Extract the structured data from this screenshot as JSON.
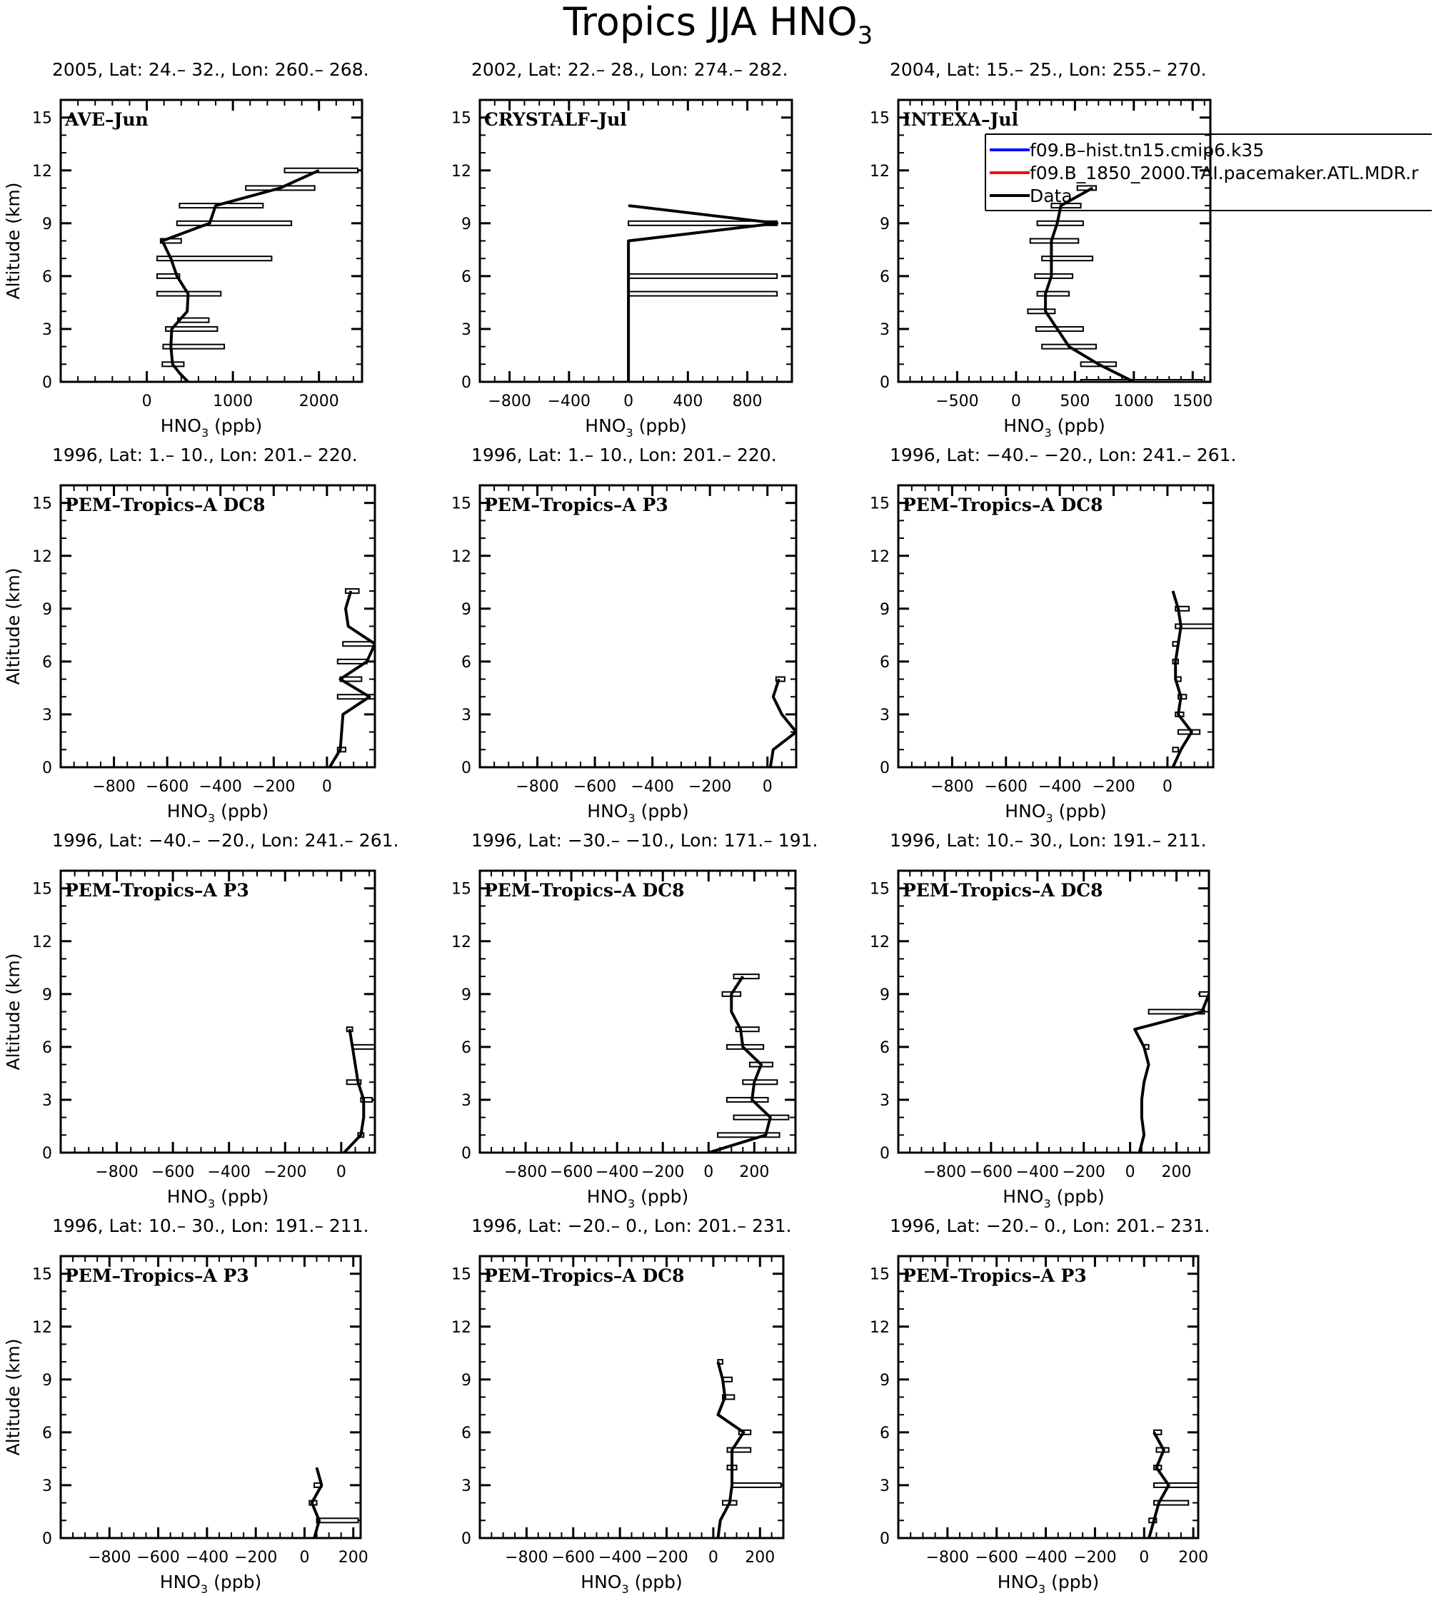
{
  "figure": {
    "title": "Tropics JJA HNO",
    "title_sub": "3"
  },
  "chart_data": [
    {
      "type": "line",
      "panel_title": "2005, Lat: 24.– 32., Lon: 260.– 268.",
      "label": "AVE–Jun",
      "xlabel": "HNO",
      "xlabel_sub": "3",
      "xlabel_unit": " (ppb)",
      "ylabel": "Altitude (km)",
      "xlim": [
        -1000,
        2500
      ],
      "ylim": [
        0,
        16
      ],
      "xticks": [
        0,
        1000,
        2000
      ],
      "xminor": 200,
      "yticks": [
        0,
        3,
        6,
        9,
        12,
        15
      ],
      "yminor": 1,
      "profile": [
        [
          480,
          0
        ],
        [
          380,
          0.5
        ],
        [
          300,
          1
        ],
        [
          280,
          2
        ],
        [
          290,
          3
        ],
        [
          380,
          3.5
        ],
        [
          470,
          4
        ],
        [
          480,
          5
        ],
        [
          350,
          6
        ],
        [
          280,
          7
        ],
        [
          180,
          8
        ],
        [
          730,
          9
        ],
        [
          800,
          10
        ],
        [
          1550,
          11
        ],
        [
          2000,
          12
        ]
      ],
      "bars": [
        [
          180,
          430,
          1
        ],
        [
          190,
          900,
          2
        ],
        [
          220,
          820,
          3
        ],
        [
          360,
          720,
          3.5
        ],
        [
          120,
          860,
          5
        ],
        [
          120,
          380,
          6
        ],
        [
          120,
          1450,
          7
        ],
        [
          160,
          400,
          8
        ],
        [
          350,
          1680,
          9
        ],
        [
          380,
          1350,
          10
        ],
        [
          1150,
          1950,
          11
        ],
        [
          1600,
          2450,
          12
        ]
      ]
    },
    {
      "type": "line",
      "panel_title": "2002, Lat: 22.– 28., Lon: 274.– 282.",
      "label": "CRYSTALF–Jul",
      "xlabel": "HNO",
      "xlabel_sub": "3",
      "xlabel_unit": " (ppb)",
      "ylabel": "",
      "xlim": [
        -1000,
        1100
      ],
      "ylim": [
        0,
        16
      ],
      "xticks": [
        -800,
        -400,
        0,
        400,
        800
      ],
      "xminor": 100,
      "yticks": [
        0,
        3,
        6,
        9,
        12,
        15
      ],
      "yminor": 1,
      "profile": [
        [
          0,
          0
        ],
        [
          0,
          8
        ],
        [
          1000,
          9
        ],
        [
          0,
          10
        ]
      ],
      "bars": [
        [
          0,
          1000,
          5
        ],
        [
          0,
          1000,
          6
        ],
        [
          0,
          1000,
          9
        ]
      ]
    },
    {
      "type": "line",
      "panel_title": "2004, Lat: 15.– 25., Lon: 255.– 270.",
      "label": "INTEXA–Jul",
      "xlabel": "HNO",
      "xlabel_sub": "3",
      "xlabel_unit": " (ppb)",
      "ylabel": "",
      "xlim": [
        -1000,
        1650
      ],
      "ylim": [
        0,
        16
      ],
      "xticks": [
        -500,
        0,
        500,
        1000,
        1500
      ],
      "xminor": 100,
      "yticks": [
        0,
        3,
        6,
        9,
        12,
        15
      ],
      "yminor": 1,
      "profile": [
        [
          1000,
          0
        ],
        [
          700,
          1
        ],
        [
          450,
          2
        ],
        [
          350,
          3
        ],
        [
          250,
          4
        ],
        [
          250,
          5
        ],
        [
          300,
          6
        ],
        [
          300,
          7
        ],
        [
          300,
          8
        ],
        [
          350,
          9
        ],
        [
          380,
          10
        ],
        [
          650,
          11
        ]
      ],
      "bars": [
        [
          550,
          1580,
          0
        ],
        [
          550,
          850,
          1
        ],
        [
          220,
          680,
          2
        ],
        [
          170,
          570,
          3
        ],
        [
          100,
          330,
          4
        ],
        [
          180,
          450,
          5
        ],
        [
          160,
          480,
          6
        ],
        [
          220,
          650,
          7
        ],
        [
          120,
          530,
          8
        ],
        [
          180,
          570,
          9
        ],
        [
          300,
          550,
          10
        ],
        [
          520,
          680,
          11
        ]
      ],
      "legend": {
        "entries": [
          {
            "name": "f09.B–hist.tn15.cmip6.k35",
            "color": "#0000ff"
          },
          {
            "name": "f09.B_1850_2000.TAI.pacemaker.ATL.MDR.r",
            "color": "#ff0000"
          },
          {
            "name": "Data",
            "color": "#000000"
          }
        ]
      }
    },
    {
      "type": "line",
      "panel_title": "1996, Lat: 1.– 10., Lon: 201.– 220.",
      "label": "PEM–Tropics–A DC8",
      "xlabel": "HNO",
      "xlabel_sub": "3",
      "xlabel_unit": " (ppb)",
      "ylabel": "Altitude (km)",
      "xlim": [
        -1000,
        180
      ],
      "ylim": [
        0,
        16
      ],
      "xticks": [
        -800,
        -600,
        -400,
        -200,
        0
      ],
      "xminor": 50,
      "yticks": [
        0,
        3,
        6,
        9,
        12,
        15
      ],
      "yminor": 1,
      "profile": [
        [
          10,
          0
        ],
        [
          50,
          1
        ],
        [
          60,
          3
        ],
        [
          160,
          4
        ],
        [
          50,
          5
        ],
        [
          150,
          6
        ],
        [
          180,
          7
        ],
        [
          80,
          8
        ],
        [
          70,
          9
        ],
        [
          90,
          10
        ]
      ],
      "bars": [
        [
          40,
          70,
          1
        ],
        [
          40,
          180,
          4
        ],
        [
          50,
          130,
          5
        ],
        [
          40,
          150,
          6
        ],
        [
          60,
          180,
          7
        ],
        [
          70,
          120,
          10
        ]
      ]
    },
    {
      "type": "line",
      "panel_title": "1996, Lat: 1.– 10., Lon: 201.– 220.",
      "label": "PEM–Tropics–A P3",
      "xlabel": "HNO",
      "xlabel_sub": "3",
      "xlabel_unit": " (ppb)",
      "ylabel": "",
      "xlim": [
        -1000,
        100
      ],
      "ylim": [
        0,
        16
      ],
      "xticks": [
        -800,
        -600,
        -400,
        -200,
        0
      ],
      "xminor": 50,
      "yticks": [
        0,
        3,
        6,
        9,
        12,
        15
      ],
      "yminor": 1,
      "profile": [
        [
          10,
          0
        ],
        [
          20,
          1
        ],
        [
          100,
          2
        ],
        [
          50,
          3
        ],
        [
          20,
          4
        ],
        [
          40,
          5
        ]
      ],
      "bars": [
        [
          30,
          60,
          5
        ]
      ]
    },
    {
      "type": "line",
      "panel_title": "1996, Lat: −40.– −20., Lon: 241.– 261.",
      "label": "PEM–Tropics–A DC8",
      "xlabel": "HNO",
      "xlabel_sub": "3",
      "xlabel_unit": " (ppb)",
      "ylabel": "",
      "xlim": [
        -1000,
        170
      ],
      "ylim": [
        0,
        16
      ],
      "xticks": [
        -800,
        -600,
        -400,
        -200,
        0
      ],
      "xminor": 50,
      "yticks": [
        0,
        3,
        6,
        9,
        12,
        15
      ],
      "yminor": 1,
      "profile": [
        [
          20,
          0
        ],
        [
          50,
          1
        ],
        [
          90,
          2
        ],
        [
          40,
          3
        ],
        [
          50,
          4
        ],
        [
          30,
          5
        ],
        [
          30,
          6
        ],
        [
          40,
          7
        ],
        [
          50,
          8
        ],
        [
          40,
          9
        ],
        [
          20,
          10
        ]
      ],
      "bars": [
        [
          20,
          40,
          1
        ],
        [
          40,
          120,
          2
        ],
        [
          30,
          60,
          3
        ],
        [
          40,
          70,
          4
        ],
        [
          30,
          50,
          5
        ],
        [
          20,
          40,
          6
        ],
        [
          20,
          40,
          7
        ],
        [
          30,
          170,
          8
        ],
        [
          30,
          80,
          9
        ]
      ]
    },
    {
      "type": "line",
      "panel_title": "1996, Lat: −40.– −20., Lon: 241.– 261.",
      "label": "PEM–Tropics–A P3",
      "xlabel": "HNO",
      "xlabel_sub": "3",
      "xlabel_unit": " (ppb)",
      "ylabel": "Altitude (km)",
      "xlim": [
        -1000,
        120
      ],
      "ylim": [
        0,
        16
      ],
      "xticks": [
        -800,
        -600,
        -400,
        -200,
        0
      ],
      "xminor": 50,
      "yticks": [
        0,
        3,
        6,
        9,
        12,
        15
      ],
      "yminor": 1,
      "profile": [
        [
          10,
          0
        ],
        [
          70,
          1
        ],
        [
          80,
          2
        ],
        [
          80,
          3
        ],
        [
          60,
          4
        ],
        [
          50,
          5
        ],
        [
          40,
          6
        ],
        [
          30,
          7
        ]
      ],
      "bars": [
        [
          60,
          80,
          1
        ],
        [
          70,
          110,
          3
        ],
        [
          20,
          70,
          4
        ],
        [
          40,
          120,
          6
        ],
        [
          20,
          40,
          7
        ]
      ]
    },
    {
      "type": "line",
      "panel_title": "1996, Lat: −30.– −10., Lon: 171.– 191.",
      "label": "PEM–Tropics–A DC8",
      "xlabel": "HNO",
      "xlabel_sub": "3",
      "xlabel_unit": " (ppb)",
      "ylabel": "",
      "xlim": [
        -1000,
        380
      ],
      "ylim": [
        0,
        16
      ],
      "xticks": [
        -800,
        -600,
        -400,
        -200,
        0,
        200
      ],
      "xminor": 50,
      "yticks": [
        0,
        3,
        6,
        9,
        12,
        15
      ],
      "yminor": 1,
      "profile": [
        [
          0,
          0
        ],
        [
          250,
          1
        ],
        [
          270,
          2
        ],
        [
          190,
          3
        ],
        [
          200,
          4
        ],
        [
          230,
          5
        ],
        [
          150,
          6
        ],
        [
          140,
          7
        ],
        [
          100,
          8
        ],
        [
          100,
          9
        ],
        [
          150,
          10
        ]
      ],
      "bars": [
        [
          40,
          310,
          1
        ],
        [
          110,
          350,
          2
        ],
        [
          80,
          260,
          3
        ],
        [
          150,
          300,
          4
        ],
        [
          180,
          280,
          5
        ],
        [
          80,
          240,
          6
        ],
        [
          120,
          220,
          7
        ],
        [
          60,
          140,
          9
        ],
        [
          110,
          220,
          10
        ]
      ]
    },
    {
      "type": "line",
      "panel_title": "1996, Lat: 10.– 30., Lon: 191.– 211.",
      "label": "PEM–Tropics–A DC8",
      "xlabel": "HNO",
      "xlabel_sub": "3",
      "xlabel_unit": " (ppb)",
      "ylabel": "",
      "xlim": [
        -1000,
        340
      ],
      "ylim": [
        0,
        16
      ],
      "xticks": [
        -800,
        -600,
        -400,
        -200,
        0,
        200
      ],
      "xminor": 50,
      "yticks": [
        0,
        3,
        6,
        9,
        12,
        15
      ],
      "yminor": 1,
      "profile": [
        [
          40,
          0
        ],
        [
          60,
          1
        ],
        [
          50,
          2
        ],
        [
          50,
          3
        ],
        [
          60,
          4
        ],
        [
          80,
          5
        ],
        [
          60,
          6
        ],
        [
          20,
          7
        ],
        [
          310,
          8
        ],
        [
          340,
          9
        ]
      ],
      "bars": [
        [
          80,
          320,
          8
        ],
        [
          300,
          340,
          9
        ],
        [
          60,
          80,
          6
        ]
      ]
    },
    {
      "type": "line",
      "panel_title": "1996, Lat: 10.– 30., Lon: 191.– 211.",
      "label": "PEM–Tropics–A P3",
      "xlabel": "HNO",
      "xlabel_sub": "3",
      "xlabel_unit": " (ppb)",
      "ylabel": "Altitude (km)",
      "xlim": [
        -1000,
        230
      ],
      "ylim": [
        0,
        16
      ],
      "xticks": [
        -800,
        -600,
        -400,
        -200,
        0,
        200
      ],
      "xminor": 50,
      "yticks": [
        0,
        3,
        6,
        9,
        12,
        15
      ],
      "yminor": 1,
      "profile": [
        [
          40,
          0
        ],
        [
          60,
          1
        ],
        [
          30,
          2
        ],
        [
          70,
          3
        ],
        [
          50,
          4
        ]
      ],
      "bars": [
        [
          50,
          220,
          1
        ],
        [
          20,
          50,
          2
        ],
        [
          40,
          70,
          3
        ]
      ]
    },
    {
      "type": "line",
      "panel_title": "1996, Lat: −20.– 0., Lon: 201.– 231.",
      "label": "PEM–Tropics–A DC8",
      "xlabel": "HNO",
      "xlabel_sub": "3",
      "xlabel_unit": " (ppb)",
      "ylabel": "",
      "xlim": [
        -1000,
        300
      ],
      "ylim": [
        0,
        16
      ],
      "xticks": [
        -800,
        -600,
        -400,
        -200,
        0,
        200
      ],
      "xminor": 50,
      "yticks": [
        0,
        3,
        6,
        9,
        12,
        15
      ],
      "yminor": 1,
      "profile": [
        [
          20,
          0
        ],
        [
          30,
          1
        ],
        [
          70,
          2
        ],
        [
          80,
          3
        ],
        [
          80,
          4
        ],
        [
          80,
          5
        ],
        [
          130,
          6
        ],
        [
          20,
          7
        ],
        [
          50,
          8
        ],
        [
          40,
          9
        ],
        [
          20,
          10
        ]
      ],
      "bars": [
        [
          40,
          100,
          2
        ],
        [
          80,
          290,
          3
        ],
        [
          60,
          100,
          4
        ],
        [
          60,
          160,
          5
        ],
        [
          110,
          160,
          6
        ],
        [
          40,
          90,
          8
        ],
        [
          40,
          80,
          9
        ],
        [
          20,
          40,
          10
        ]
      ]
    },
    {
      "type": "line",
      "panel_title": "1996, Lat: −20.– 0., Lon: 201.– 231.",
      "label": "PEM–Tropics–A P3",
      "xlabel": "HNO",
      "xlabel_sub": "3",
      "xlabel_unit": " (ppb)",
      "ylabel": "",
      "xlim": [
        -1000,
        220
      ],
      "ylim": [
        0,
        16
      ],
      "xticks": [
        -800,
        -600,
        -400,
        -200,
        0,
        200
      ],
      "xminor": 50,
      "yticks": [
        0,
        3,
        6,
        9,
        12,
        15
      ],
      "yminor": 1,
      "profile": [
        [
          20,
          0
        ],
        [
          40,
          1
        ],
        [
          60,
          2
        ],
        [
          100,
          3
        ],
        [
          50,
          4
        ],
        [
          80,
          5
        ],
        [
          40,
          6
        ]
      ],
      "bars": [
        [
          20,
          50,
          1
        ],
        [
          40,
          180,
          2
        ],
        [
          40,
          220,
          3
        ],
        [
          40,
          70,
          4
        ],
        [
          50,
          100,
          5
        ],
        [
          40,
          70,
          6
        ]
      ]
    }
  ]
}
